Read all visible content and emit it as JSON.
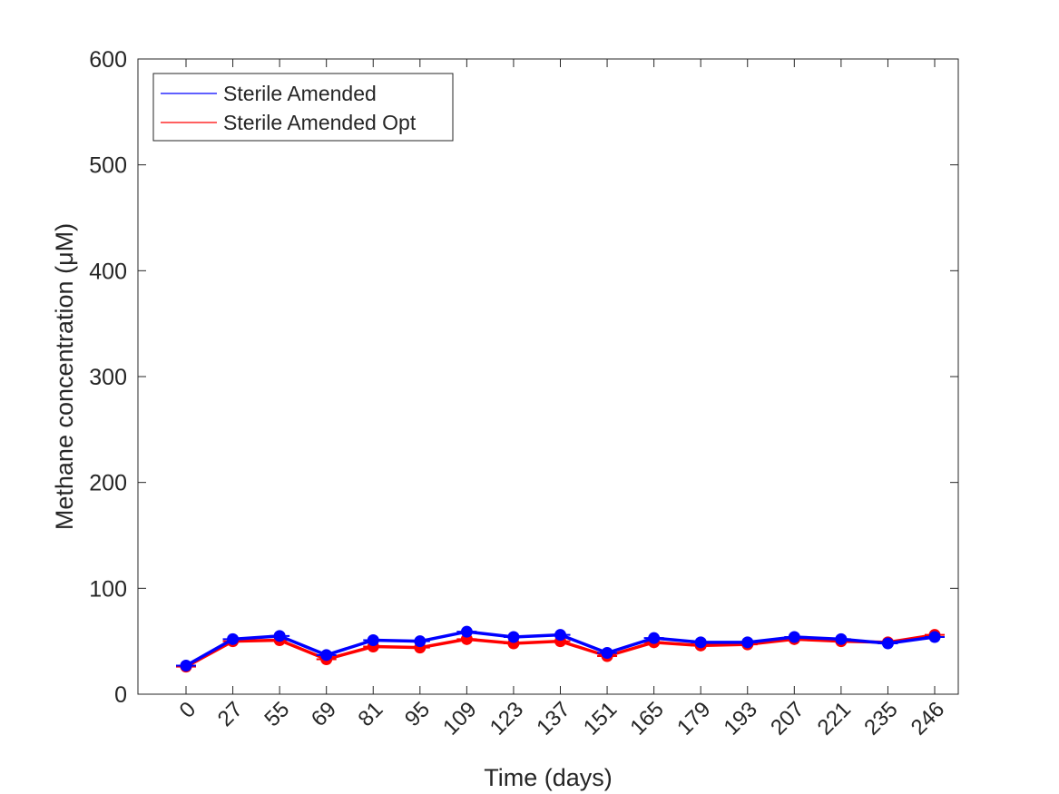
{
  "chart_data": {
    "type": "line",
    "xlabel": "Time (days)",
    "ylabel": "Methane concentration (μM)",
    "categories": [
      "0",
      "27",
      "55",
      "69",
      "81",
      "95",
      "109",
      "123",
      "137",
      "151",
      "165",
      "179",
      "193",
      "207",
      "221",
      "235",
      "246"
    ],
    "ylim": [
      0,
      600
    ],
    "yticks": [
      0,
      100,
      200,
      300,
      400,
      500,
      600
    ],
    "grid": false,
    "legend_position": "top-left",
    "series": [
      {
        "name": "Sterile Amended",
        "color": "#0000ff",
        "values": [
          27,
          52,
          55,
          37,
          51,
          50,
          59,
          54,
          56,
          39,
          53,
          49,
          49,
          54,
          52,
          48,
          54
        ]
      },
      {
        "name": "Sterile Amended Opt",
        "color": "#ff0000",
        "values": [
          26,
          50,
          51,
          33,
          45,
          44,
          52,
          48,
          50,
          36,
          49,
          46,
          47,
          52,
          50,
          49,
          56
        ]
      }
    ]
  }
}
